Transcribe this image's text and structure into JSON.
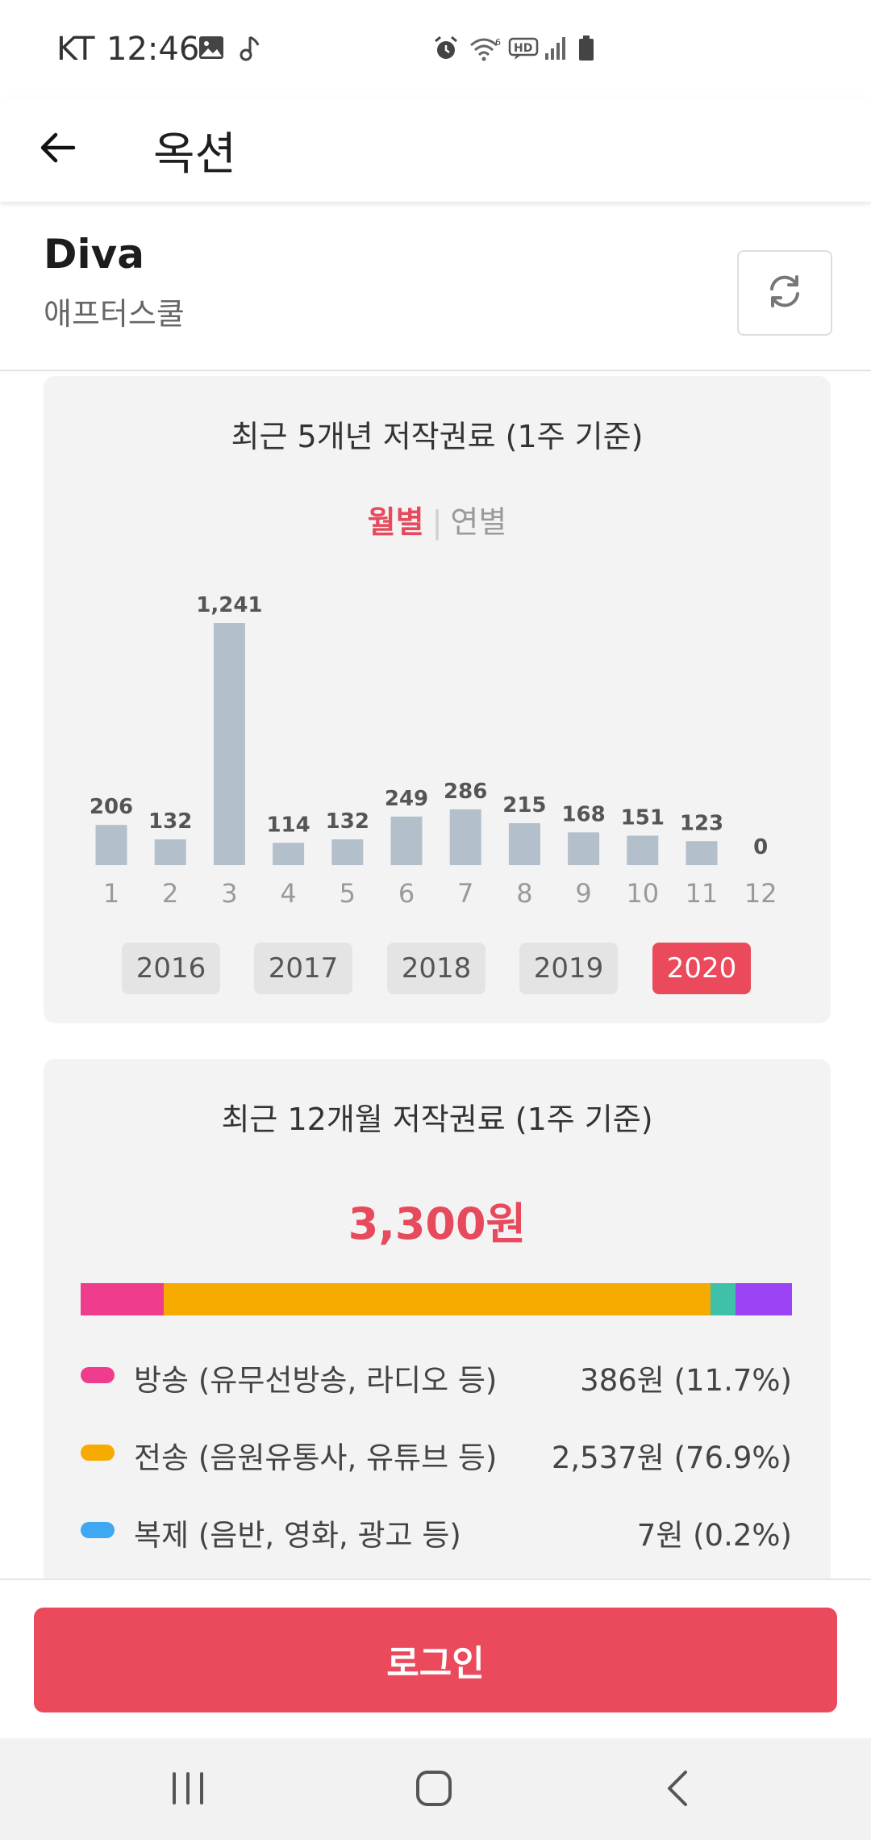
{
  "status_bar": {
    "carrier": "KT",
    "time": "12:46",
    "left_icons": [
      "image-icon",
      "music-note-icon"
    ],
    "right_icons": [
      "alarm-icon",
      "wifi-icon",
      "hd-voice-icon",
      "signal-icon",
      "battery-icon"
    ]
  },
  "app_bar": {
    "back_icon": "arrow-left-icon",
    "title": "옥션"
  },
  "song": {
    "title": "Diva",
    "artist": "애프터스쿨",
    "refresh_icon": "refresh-icon"
  },
  "history_card": {
    "title": "최근 5개년 저작권료 (1주 기준)",
    "toggle": {
      "monthly": "월별",
      "separator": "|",
      "yearly": "연별",
      "selected": "monthly"
    },
    "years": [
      "2016",
      "2017",
      "2018",
      "2019",
      "2020"
    ],
    "selected_year": "2020"
  },
  "chart_data": {
    "type": "bar",
    "categories": [
      "1",
      "2",
      "3",
      "4",
      "5",
      "6",
      "7",
      "8",
      "9",
      "10",
      "11",
      "12"
    ],
    "values": [
      206,
      132,
      1241,
      114,
      132,
      249,
      286,
      215,
      168,
      151,
      123,
      0
    ],
    "value_labels": [
      "206",
      "132",
      "1,241",
      "114",
      "132",
      "249",
      "286",
      "215",
      "168",
      "151",
      "123",
      "0"
    ],
    "bar_color": "#b4bfcc",
    "ylim": [
      0,
      1241
    ],
    "grid": false
  },
  "summary_card": {
    "title": "최근 12개월 저작권료 (1주 기준)",
    "total": "3,300원",
    "stack_segments": [
      {
        "color": "#f03c8c",
        "percent": 11.7
      },
      {
        "color": "#f7ab00",
        "percent": 76.9
      },
      {
        "color": "#3ec1a8",
        "percent": 3.5
      },
      {
        "color": "#9b43f5",
        "percent": 7.9
      }
    ],
    "categories": [
      {
        "label": "방송 (유무선방송, 라디오 등)",
        "value": "386원 (11.7%)",
        "color": "#f03c8c"
      },
      {
        "label": "전송 (음원유통사, 유튜브 등)",
        "value": "2,537원 (76.9%)",
        "color": "#f7ab00"
      },
      {
        "label": "복제 (음반, 영화, 광고 등)",
        "value": "7원 (0.2%)",
        "color": "#3ea8f2"
      }
    ]
  },
  "login_button": {
    "label": "로그인"
  },
  "nav_bar": {
    "recent_icon": "recent-apps-icon",
    "home_icon": "home-icon",
    "back_icon": "nav-back-icon"
  }
}
